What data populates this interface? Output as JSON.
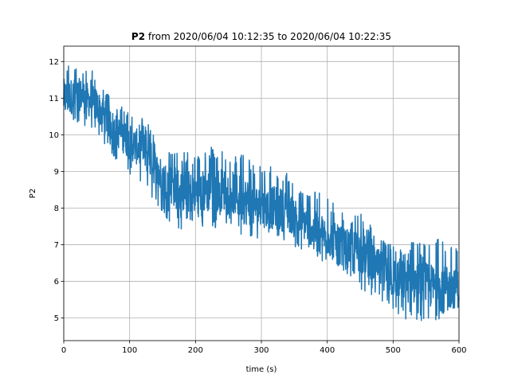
{
  "chart_data": {
    "type": "line",
    "title_bold": "P2",
    "title_rest": " from 2020/06/04 10:12:35 to 2020/06/04 10:22:35",
    "xlabel": "time (s)",
    "ylabel": "P2",
    "xlim": [
      0,
      600
    ],
    "ylim": [
      4.38,
      12.42
    ],
    "xticks": [
      0,
      100,
      200,
      300,
      400,
      500,
      600
    ],
    "yticks": [
      5,
      6,
      7,
      8,
      9,
      10,
      11,
      12
    ],
    "grid": true,
    "series": [
      {
        "color": "#1f77b4",
        "x": [
          0,
          25,
          50,
          75,
          100,
          125,
          150,
          175,
          200,
          225,
          250,
          275,
          300,
          325,
          350,
          375,
          400,
          425,
          450,
          475,
          500,
          525,
          550,
          575,
          600
        ],
        "y_center": [
          11.0,
          11.1,
          10.8,
          10.2,
          9.8,
          9.5,
          8.8,
          8.5,
          8.4,
          8.5,
          8.5,
          8.2,
          8.0,
          8.0,
          7.8,
          7.5,
          7.2,
          7.0,
          6.8,
          6.4,
          6.1,
          6.0,
          5.9,
          5.8,
          5.8
        ],
        "y_min": [
          10.2,
          10.3,
          10.0,
          9.4,
          8.9,
          8.5,
          7.8,
          7.4,
          7.5,
          7.4,
          7.6,
          7.1,
          7.2,
          7.0,
          6.9,
          6.8,
          6.4,
          6.3,
          5.8,
          5.5,
          5.0,
          4.9,
          4.8,
          5.0,
          5.1
        ],
        "y_max": [
          12.1,
          11.9,
          11.7,
          11.0,
          10.6,
          10.4,
          9.6,
          9.6,
          9.5,
          9.7,
          9.6,
          9.5,
          9.1,
          9.2,
          8.8,
          8.6,
          8.3,
          7.9,
          7.9,
          7.3,
          7.0,
          7.1,
          7.0,
          7.2,
          7.0
        ]
      }
    ]
  }
}
